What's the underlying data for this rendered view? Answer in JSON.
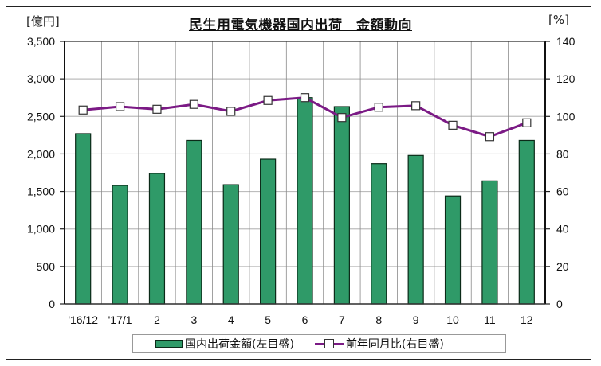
{
  "chart_data": {
    "type": "bar+line",
    "title": "民生用電気機器国内出荷　金額動向",
    "categories": [
      "'16/12",
      "'17/1",
      "2",
      "3",
      "4",
      "5",
      "6",
      "7",
      "8",
      "9",
      "10",
      "11",
      "12"
    ],
    "series": [
      {
        "name": "国内出荷金額(左目盛)",
        "type": "bar",
        "axis": "left",
        "color": "#2f9a68",
        "values": [
          2270,
          1580,
          1740,
          2180,
          1590,
          1930,
          2750,
          2630,
          1870,
          1980,
          1440,
          1640,
          2180
        ]
      },
      {
        "name": "前年同月比(右目盛)",
        "type": "line",
        "axis": "right",
        "color": "#7b1a85",
        "marker": "square-open",
        "values": [
          103.4,
          105.2,
          103.8,
          106.4,
          102.7,
          108.5,
          110.0,
          99.4,
          104.9,
          105.7,
          95.3,
          89.2,
          96.6
        ]
      }
    ],
    "y_left": {
      "label": "[億円]",
      "min": 0,
      "max": 3500,
      "ticks": [
        "0",
        "500",
        "1,000",
        "1,500",
        "2,000",
        "2,500",
        "3,000",
        "3,500"
      ]
    },
    "y_right": {
      "label": "[%]",
      "min": 0,
      "max": 140,
      "ticks": [
        "0",
        "20",
        "40",
        "60",
        "80",
        "100",
        "120",
        "140"
      ]
    },
    "grid": true,
    "legend_position": "bottom"
  },
  "legend": {
    "bar_label": "国内出荷金額(左目盛)",
    "line_label": "前年同月比(右目盛)"
  }
}
